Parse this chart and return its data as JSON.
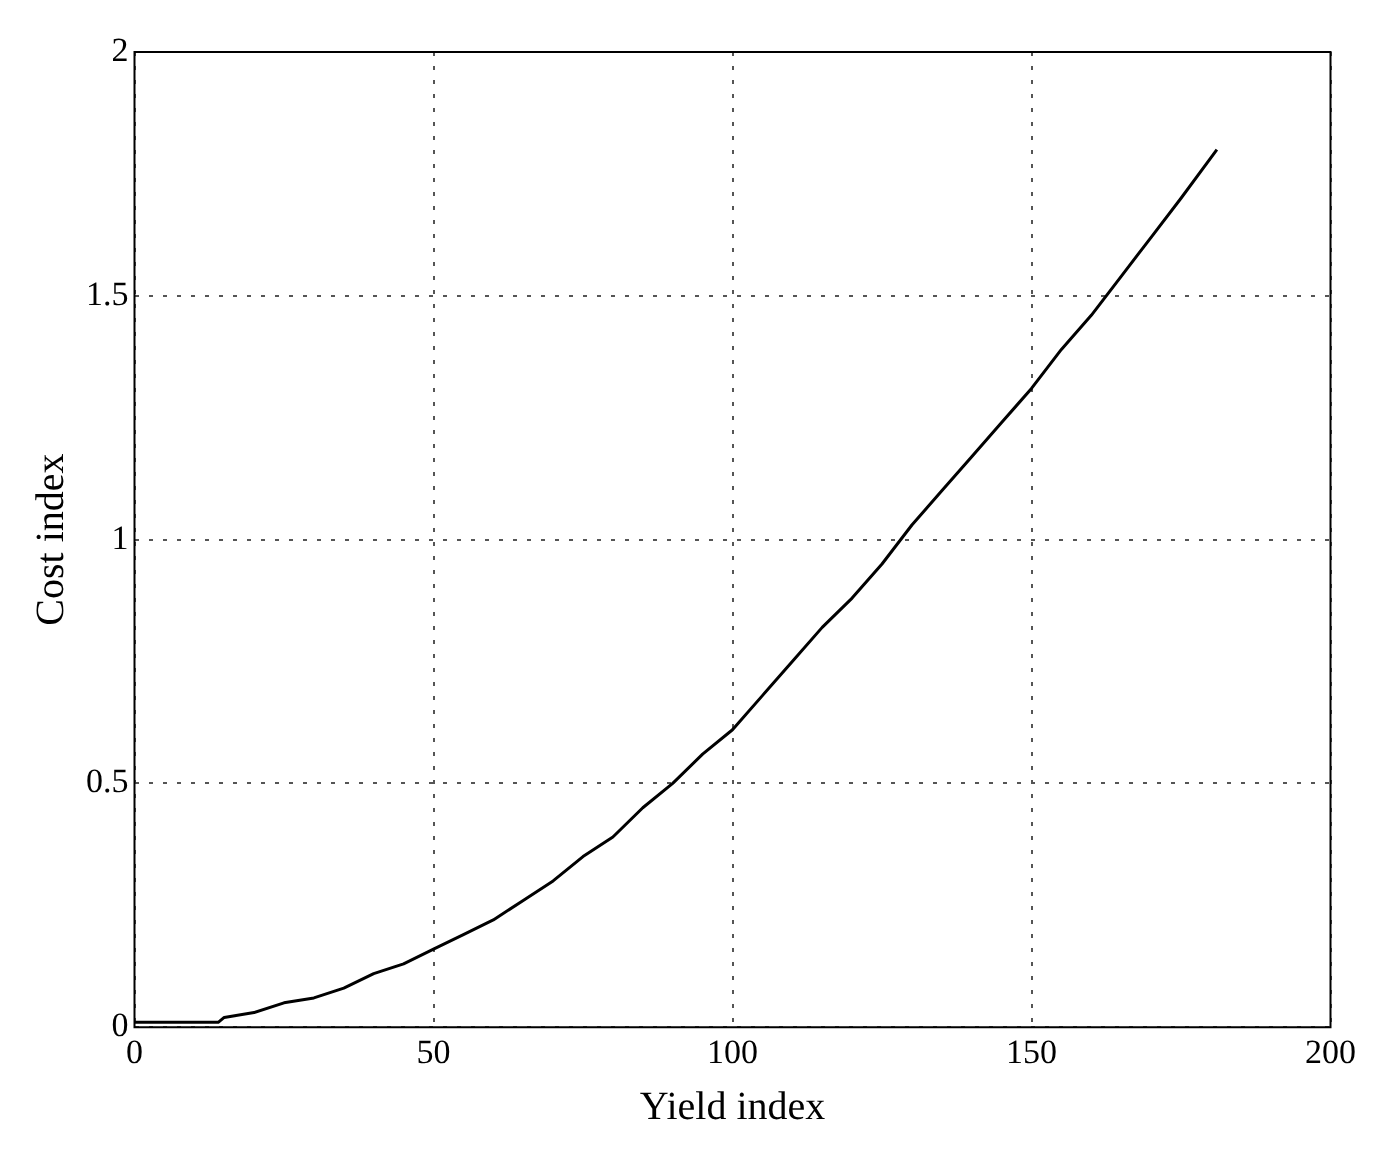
{
  "chart_data": {
    "type": "line",
    "xlabel": "Yield index",
    "ylabel": "Cost index",
    "x": [
      0,
      14,
      15,
      20,
      25,
      30,
      35,
      40,
      45,
      50,
      55,
      60,
      65,
      70,
      75,
      80,
      85,
      90,
      95,
      100,
      105,
      110,
      115,
      120,
      125,
      130,
      135,
      140,
      145,
      150,
      155,
      160,
      165,
      170,
      175,
      181
    ],
    "values": [
      0.01,
      0.01,
      0.02,
      0.03,
      0.05,
      0.06,
      0.08,
      0.11,
      0.13,
      0.16,
      0.19,
      0.22,
      0.26,
      0.3,
      0.35,
      0.39,
      0.45,
      0.5,
      0.56,
      0.61,
      0.68,
      0.75,
      0.82,
      0.88,
      0.95,
      1.03,
      1.1,
      1.17,
      1.24,
      1.31,
      1.39,
      1.46,
      1.54,
      1.62,
      1.7,
      1.8
    ],
    "color": "#000000",
    "marker": "none",
    "line_style": "solid",
    "xlim": [
      0,
      200
    ],
    "xticks": [
      0,
      50,
      100,
      150,
      200
    ],
    "ylim": [
      0,
      2
    ],
    "yticks": [
      0,
      0.5,
      1,
      1.5,
      2
    ],
    "grid": true
  }
}
